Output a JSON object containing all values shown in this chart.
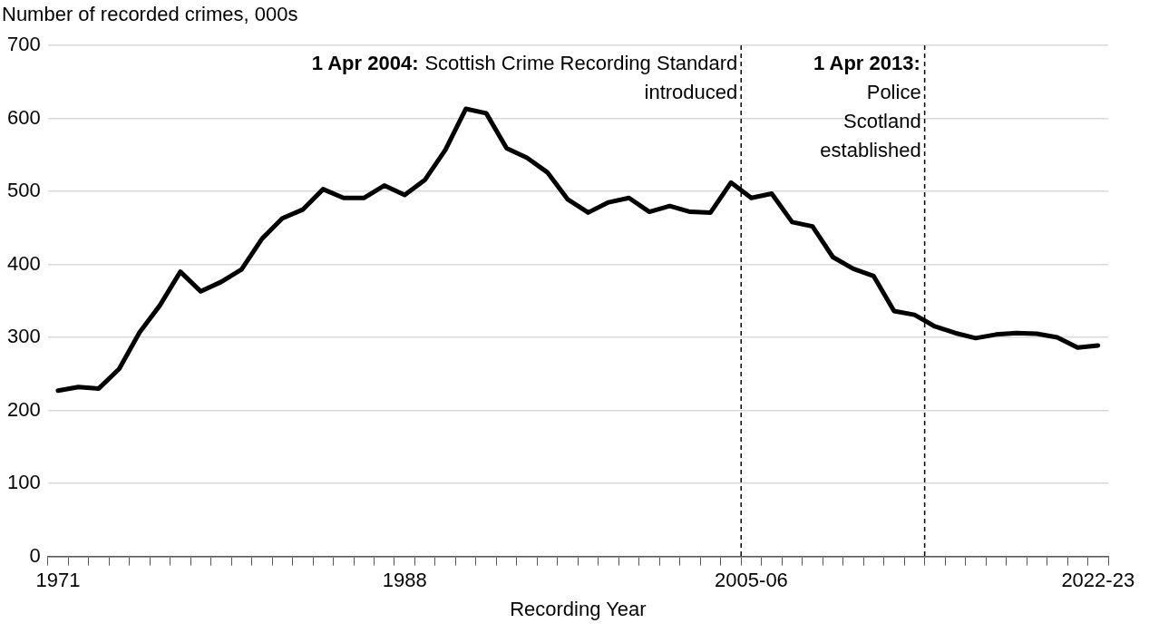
{
  "chart_data": {
    "type": "line",
    "ylabel": "Number of recorded crimes, 000s",
    "xlabel": "Recording Year",
    "categories": [
      "1971",
      null,
      null,
      null,
      null,
      null,
      null,
      null,
      null,
      null,
      null,
      null,
      null,
      null,
      null,
      null,
      null,
      "1988",
      null,
      null,
      null,
      null,
      null,
      null,
      null,
      null,
      null,
      null,
      null,
      null,
      null,
      null,
      null,
      null,
      "2005-06",
      null,
      null,
      null,
      null,
      null,
      null,
      null,
      null,
      null,
      null,
      null,
      null,
      null,
      null,
      null,
      null,
      "2022-23"
    ],
    "series": [
      {
        "color": "#000000",
        "values": [
          227,
          232,
          230,
          257,
          307,
          344,
          390,
          363,
          376,
          393,
          435,
          463,
          475,
          503,
          491,
          491,
          508,
          495,
          516,
          557,
          613,
          607,
          559,
          546,
          526,
          489,
          471,
          485,
          491,
          472,
          480,
          472,
          471,
          512,
          491,
          497,
          458,
          452,
          410,
          394,
          384,
          336,
          331,
          315,
          306,
          299,
          304,
          306,
          305,
          300,
          286,
          289
        ]
      }
    ],
    "ylim": [
      0,
      700
    ],
    "yticks": [
      0,
      100,
      200,
      300,
      400,
      500,
      600,
      700
    ],
    "grid": "y",
    "marker": "none",
    "line_style": "solid",
    "annotations": [
      "1 Apr 2004: Scottish Crime Recording Standard\nintroduced",
      "1 Apr 2013:\nPolice\nScotland\nestablished"
    ]
  }
}
